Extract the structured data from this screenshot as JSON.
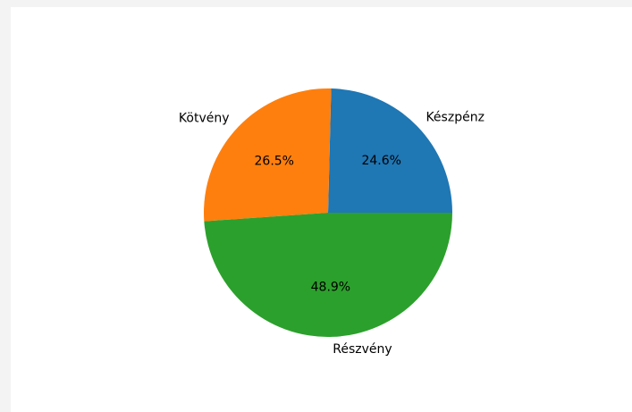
{
  "chart_data": {
    "type": "pie",
    "categories": [
      "Készpénz",
      "Kötvény",
      "Részvény"
    ],
    "values": [
      24.6,
      26.5,
      48.9
    ],
    "value_labels": [
      "24.6%",
      "26.5%",
      "48.9%"
    ],
    "colors": [
      "#1f77b4",
      "#ff7f0e",
      "#2ca02c"
    ],
    "start_angle_deg": 0,
    "direction": "counterclockwise",
    "title": "",
    "legend": false
  }
}
